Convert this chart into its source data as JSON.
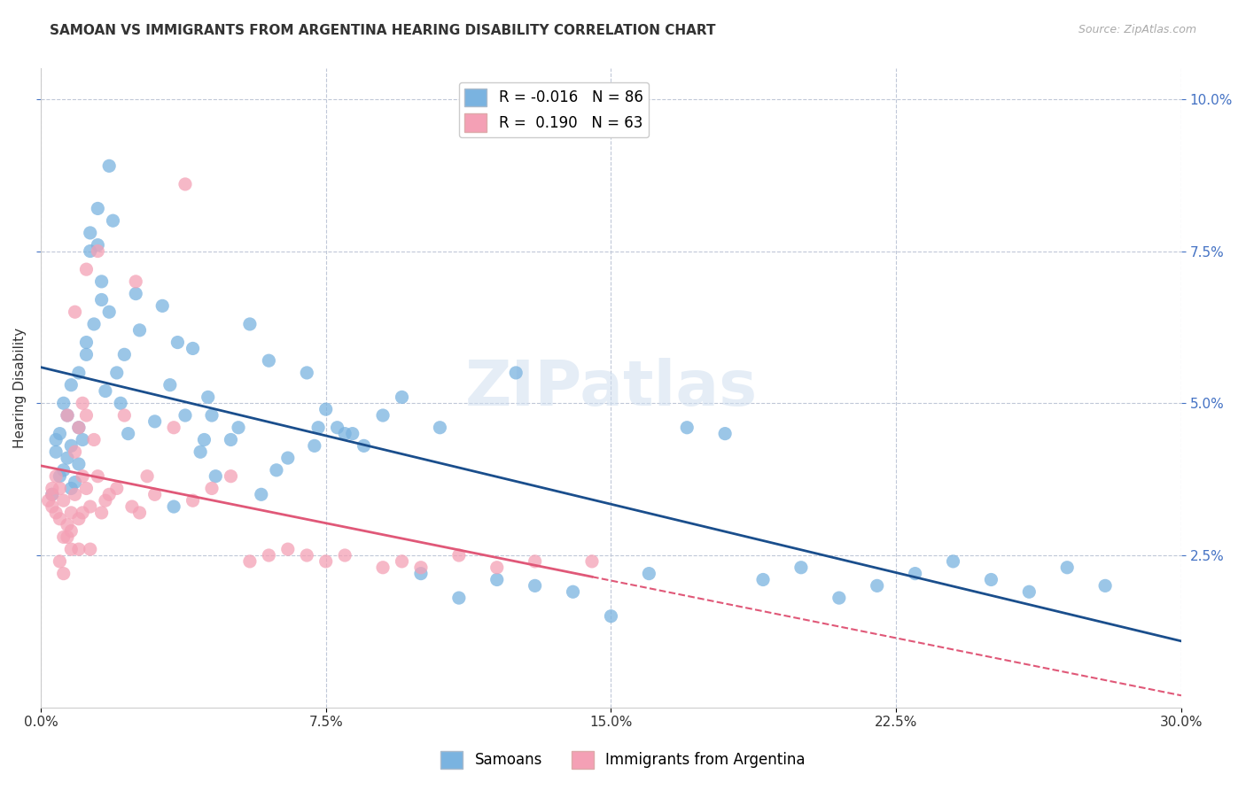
{
  "title": "SAMOAN VS IMMIGRANTS FROM ARGENTINA HEARING DISABILITY CORRELATION CHART",
  "source": "Source: ZipAtlas.com",
  "xlabel_labels": [
    "0.0%",
    "7.5%",
    "15.0%",
    "22.5%",
    "30.0%"
  ],
  "xlabel_ticks": [
    0.0,
    7.5,
    15.0,
    22.5,
    30.0
  ],
  "ylabel_labels": [
    "2.5%",
    "5.0%",
    "7.5%",
    "10.0%"
  ],
  "ylabel_ticks": [
    2.5,
    5.0,
    7.5,
    10.0
  ],
  "xmin": 0.0,
  "xmax": 30.0,
  "ymin": 0.0,
  "ymax": 10.5,
  "legend_label_blue": "Samoans",
  "legend_label_pink": "Immigrants from Argentina",
  "R_blue": -0.016,
  "N_blue": 86,
  "R_pink": 0.19,
  "N_pink": 63,
  "color_blue": "#7ab3e0",
  "color_pink": "#f4a0b5",
  "color_line_blue": "#1a4e8c",
  "color_line_pink": "#e05878",
  "watermark": "ZIPatlas",
  "title_fontsize": 11,
  "blue_x": [
    0.3,
    0.4,
    0.5,
    0.5,
    0.6,
    0.7,
    0.7,
    0.8,
    0.8,
    0.9,
    1.0,
    1.0,
    1.1,
    1.2,
    1.2,
    1.3,
    1.3,
    1.4,
    1.5,
    1.5,
    1.6,
    1.7,
    1.8,
    1.9,
    2.0,
    2.1,
    2.2,
    2.3,
    2.5,
    2.6,
    3.0,
    3.2,
    3.4,
    3.6,
    3.8,
    4.0,
    4.2,
    4.4,
    4.6,
    5.0,
    5.2,
    5.5,
    5.8,
    6.0,
    6.2,
    6.5,
    7.0,
    7.2,
    7.5,
    7.8,
    8.0,
    8.5,
    9.0,
    9.5,
    10.0,
    10.5,
    11.0,
    12.0,
    13.0,
    14.0,
    15.0,
    16.0,
    17.0,
    18.0,
    19.0,
    20.0,
    21.0,
    22.0,
    23.0,
    24.0,
    25.0,
    26.0,
    27.0,
    28.0,
    0.4,
    0.6,
    0.8,
    1.0,
    3.5,
    4.5,
    7.3,
    12.5,
    4.3,
    8.2,
    1.6,
    1.8
  ],
  "blue_y": [
    3.5,
    4.2,
    3.8,
    4.5,
    3.9,
    4.1,
    4.8,
    3.6,
    4.3,
    3.7,
    4.0,
    4.6,
    4.4,
    6.0,
    5.8,
    7.8,
    7.5,
    6.3,
    7.6,
    8.2,
    6.7,
    5.2,
    6.5,
    8.0,
    5.5,
    5.0,
    5.8,
    4.5,
    6.8,
    6.2,
    4.7,
    6.6,
    5.3,
    6.0,
    4.8,
    5.9,
    4.2,
    5.1,
    3.8,
    4.4,
    4.6,
    6.3,
    3.5,
    5.7,
    3.9,
    4.1,
    5.5,
    4.3,
    4.9,
    4.6,
    4.5,
    4.3,
    4.8,
    5.1,
    2.2,
    4.6,
    1.8,
    2.1,
    2.0,
    1.9,
    1.5,
    2.2,
    4.6,
    4.5,
    2.1,
    2.3,
    1.8,
    2.0,
    2.2,
    2.4,
    2.1,
    1.9,
    2.3,
    2.0,
    4.4,
    5.0,
    5.3,
    5.5,
    3.3,
    4.8,
    4.6,
    5.5,
    4.4,
    4.5,
    7.0,
    8.9
  ],
  "pink_x": [
    0.2,
    0.3,
    0.3,
    0.4,
    0.4,
    0.5,
    0.5,
    0.6,
    0.6,
    0.7,
    0.7,
    0.8,
    0.8,
    0.9,
    0.9,
    1.0,
    1.0,
    1.1,
    1.1,
    1.2,
    1.2,
    1.3,
    1.4,
    1.5,
    1.6,
    1.7,
    1.8,
    2.0,
    2.2,
    2.4,
    2.6,
    2.8,
    3.0,
    3.5,
    4.0,
    4.5,
    5.0,
    5.5,
    6.0,
    6.5,
    7.0,
    7.5,
    8.0,
    9.0,
    9.5,
    10.0,
    11.0,
    12.0,
    13.0,
    14.5,
    0.3,
    0.5,
    0.6,
    0.7,
    0.8,
    1.0,
    1.1,
    1.3,
    1.5,
    2.5,
    3.8,
    0.9,
    1.2
  ],
  "pink_y": [
    3.4,
    3.3,
    3.5,
    3.2,
    3.8,
    3.1,
    3.6,
    2.8,
    3.4,
    3.0,
    4.8,
    2.9,
    3.2,
    3.5,
    4.2,
    3.1,
    4.6,
    3.8,
    5.0,
    3.6,
    4.8,
    3.3,
    4.4,
    3.8,
    3.2,
    3.4,
    3.5,
    3.6,
    4.8,
    3.3,
    3.2,
    3.8,
    3.5,
    4.6,
    3.4,
    3.6,
    3.8,
    2.4,
    2.5,
    2.6,
    2.5,
    2.4,
    2.5,
    2.3,
    2.4,
    2.3,
    2.5,
    2.3,
    2.4,
    2.4,
    3.6,
    2.4,
    2.2,
    2.8,
    2.6,
    2.6,
    3.2,
    2.6,
    7.5,
    7.0,
    8.6,
    6.5,
    7.2
  ]
}
